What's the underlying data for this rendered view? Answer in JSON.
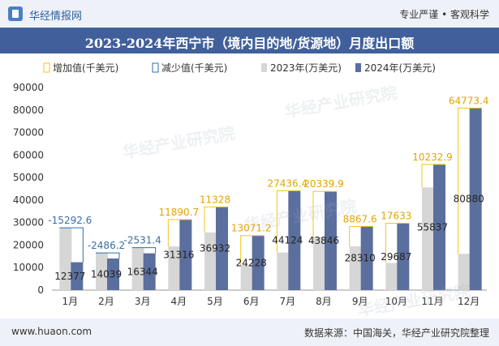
{
  "header": {
    "site_name": "华经情报网",
    "tagline": "专业严谨 • 客观科学"
  },
  "title": "2023-2024年西宁市（境内目的地/货源地）月度出口额",
  "footer": {
    "url": "www.huaon.com",
    "source": "数据来源：中国海关，华经产业研究院整理"
  },
  "watermark": {
    "text": "华经产业研究院",
    "url": "www.huaon.com"
  },
  "colors": {
    "inc": "#f5c518",
    "dec": "#2e6fb2",
    "y2023": "#d6d6d6",
    "y2024": "#5b6f9e"
  },
  "chart_data": {
    "type": "bar",
    "categories": [
      "1月",
      "2月",
      "3月",
      "4月",
      "5月",
      "6月",
      "7月",
      "8月",
      "9月",
      "10月",
      "11月",
      "12月"
    ],
    "series": [
      {
        "name": "2023年(万美元)",
        "values": [
          27669.6,
          16525.2,
          18875.4,
          19425.3,
          25604,
          11156.8,
          16687.6,
          23506.1,
          19442.4,
          12054,
          45604.1,
          16106.6
        ]
      },
      {
        "name": "2024年(万美元)",
        "values": [
          12377,
          14039,
          16344,
          31316,
          36932,
          24228,
          44124,
          43846,
          28310,
          29687,
          55837,
          80880
        ]
      }
    ],
    "change": {
      "labels": [
        "-15292.6",
        "-2486.2",
        "-2531.4",
        "11890.7",
        "11328",
        "13071.2",
        "27436.4",
        "20339.9",
        "8867.6",
        "17633",
        "10232.9",
        "64773.4"
      ],
      "types": [
        "dec",
        "dec",
        "dec",
        "inc",
        "inc",
        "inc",
        "inc",
        "inc",
        "inc",
        "inc",
        "inc",
        "inc"
      ]
    },
    "legend": [
      "增加值(千美元)",
      "减少值(千美元)",
      "2023年(万美元)",
      "2024年(万美元)"
    ],
    "ylim": [
      0,
      90000
    ],
    "yticks": [
      0,
      10000,
      20000,
      30000,
      40000,
      50000,
      60000,
      70000,
      80000,
      90000
    ],
    "grid": false,
    "legend_position": "top"
  }
}
